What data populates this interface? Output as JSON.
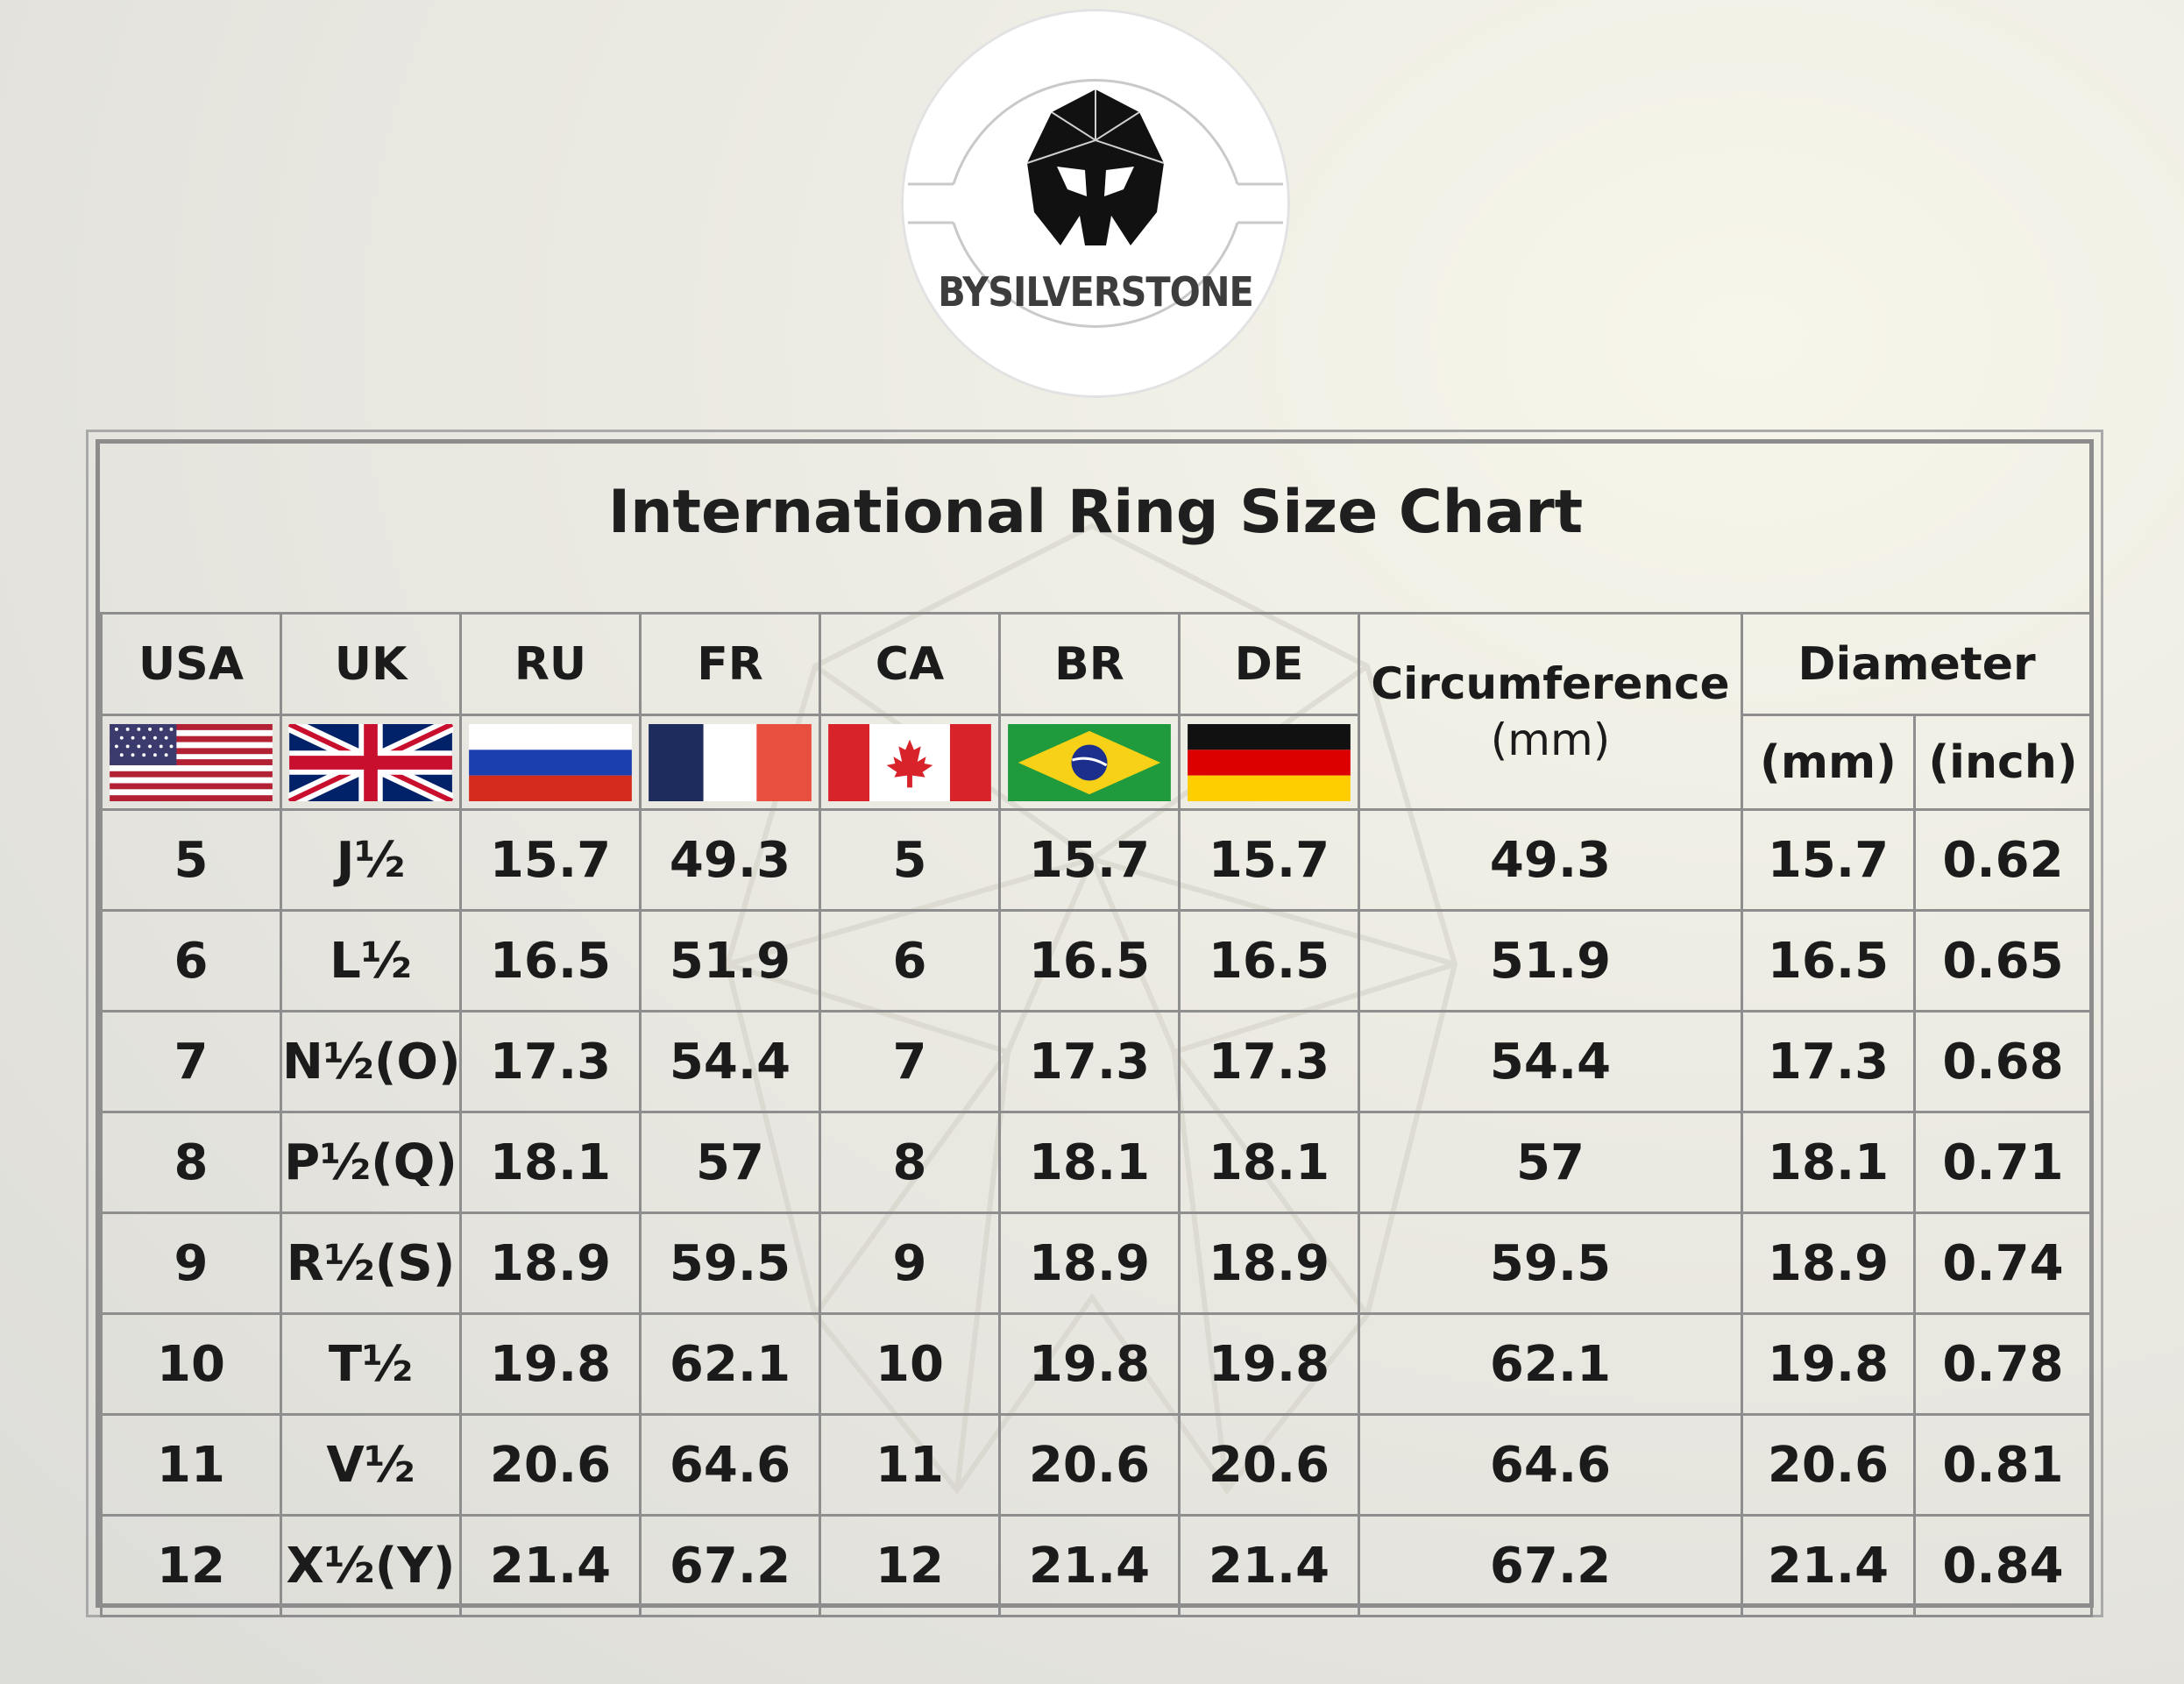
{
  "brand": {
    "name": "BYSILVERSTONE",
    "logo_icon": "spartan-helmet-icon"
  },
  "chart": {
    "title": "International Ring Size Chart",
    "headers": {
      "usa": "USA",
      "uk": "UK",
      "ru": "RU",
      "fr": "FR",
      "ca": "CA",
      "br": "BR",
      "de": "DE",
      "circumference": "Circumference",
      "circumference_unit": "(mm)",
      "diameter": "Diameter",
      "diameter_mm": "(mm)",
      "diameter_inch": "(inch)"
    },
    "flags": [
      "usa-flag-icon",
      "uk-flag-icon",
      "russia-flag-icon",
      "france-flag-icon",
      "canada-flag-icon",
      "brazil-flag-icon",
      "germany-flag-icon"
    ],
    "rows": [
      [
        "5",
        "J½",
        "15.7",
        "49.3",
        "5",
        "15.7",
        "15.7",
        "49.3",
        "15.7",
        "0.62"
      ],
      [
        "6",
        "L½",
        "16.5",
        "51.9",
        "6",
        "16.5",
        "16.5",
        "51.9",
        "16.5",
        "0.65"
      ],
      [
        "7",
        "N½(O)",
        "17.3",
        "54.4",
        "7",
        "17.3",
        "17.3",
        "54.4",
        "17.3",
        "0.68"
      ],
      [
        "8",
        "P½(Q)",
        "18.1",
        "57",
        "8",
        "18.1",
        "18.1",
        "57",
        "18.1",
        "0.71"
      ],
      [
        "9",
        "R½(S)",
        "18.9",
        "59.5",
        "9",
        "18.9",
        "18.9",
        "59.5",
        "18.9",
        "0.74"
      ],
      [
        "10",
        "T½",
        "19.8",
        "62.1",
        "10",
        "19.8",
        "19.8",
        "62.1",
        "19.8",
        "0.78"
      ],
      [
        "11",
        "V½",
        "20.6",
        "64.6",
        "11",
        "20.6",
        "20.6",
        "64.6",
        "20.6",
        "0.81"
      ],
      [
        "12",
        "X½(Y)",
        "21.4",
        "67.2",
        "12",
        "21.4",
        "21.4",
        "67.2",
        "21.4",
        "0.84"
      ]
    ]
  },
  "colors": {
    "border": "#8e8e8e",
    "text": "#1b1b1b"
  }
}
